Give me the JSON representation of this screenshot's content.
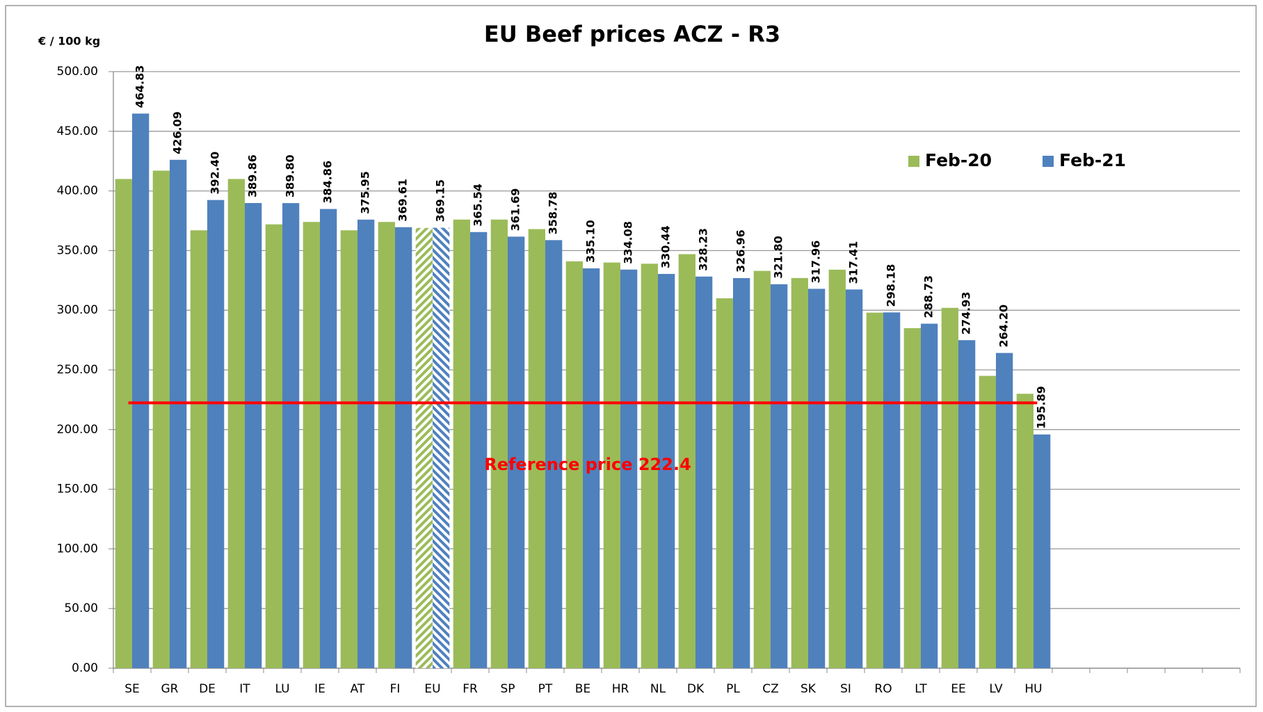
{
  "chart_data": {
    "type": "bar",
    "title": "EU Beef prices ACZ - R3",
    "y_label": "€ / 100 kg",
    "categories": [
      "SE",
      "GR",
      "DE",
      "IT",
      "LU",
      "IE",
      "AT",
      "FI",
      "EU",
      "FR",
      "SP",
      "PT",
      "BE",
      "HR",
      "NL",
      "DK",
      "PL",
      "CZ",
      "SK",
      "SI",
      "RO",
      "LT",
      "EE",
      "LV",
      "HU",
      null,
      null,
      null,
      null,
      null
    ],
    "series": [
      {
        "name": "Feb-20",
        "color": "#9bbb59",
        "values": [
          410,
          417,
          367,
          410,
          372,
          374,
          367,
          374,
          369,
          376,
          376,
          368,
          341,
          340,
          339,
          347,
          310,
          333,
          327,
          334,
          298,
          285,
          302,
          245,
          230,
          null,
          null,
          null,
          null,
          null
        ]
      },
      {
        "name": "Feb-21",
        "color": "#4f81bd",
        "values": [
          464.83,
          426.09,
          392.4,
          389.86,
          389.8,
          384.86,
          375.95,
          369.61,
          369.15,
          365.54,
          361.69,
          358.78,
          335.1,
          334.08,
          330.44,
          328.23,
          326.96,
          321.8,
          317.96,
          317.41,
          298.18,
          288.73,
          274.93,
          264.2,
          195.89,
          null,
          null,
          null,
          null,
          null
        ],
        "value_labels": [
          "464.83",
          "426.09",
          "392.40",
          "389.86",
          "389.80",
          "384.86",
          "375.95",
          "369.61",
          "369.15",
          "365.54",
          "361.69",
          "358.78",
          "335.10",
          "334.08",
          "330.44",
          "328.23",
          "326.96",
          "321.80",
          "317.96",
          "317.41",
          "298.18",
          "288.73",
          "274.93",
          "264.20",
          "195.89",
          null,
          null,
          null,
          null,
          null
        ]
      }
    ],
    "hatched_category": 8,
    "reference_line": {
      "value": 222.4,
      "label": "Reference price 222.4",
      "color": "#ff0000"
    },
    "ylim": [
      0,
      500
    ],
    "yticks": [
      {
        "value": 0,
        "label": "0.00"
      },
      {
        "value": 50,
        "label": "50.00"
      },
      {
        "value": 100,
        "label": "100.00"
      },
      {
        "value": 150,
        "label": "150.00"
      },
      {
        "value": 200,
        "label": "200.00"
      },
      {
        "value": 250,
        "label": "250.00"
      },
      {
        "value": 300,
        "label": "300.00"
      },
      {
        "value": 350,
        "label": "350.00"
      },
      {
        "value": 400,
        "label": "400.00"
      },
      {
        "value": 450,
        "label": "450.00"
      },
      {
        "value": 500,
        "label": "500.00"
      }
    ],
    "grid": true,
    "legend": "top-right"
  }
}
